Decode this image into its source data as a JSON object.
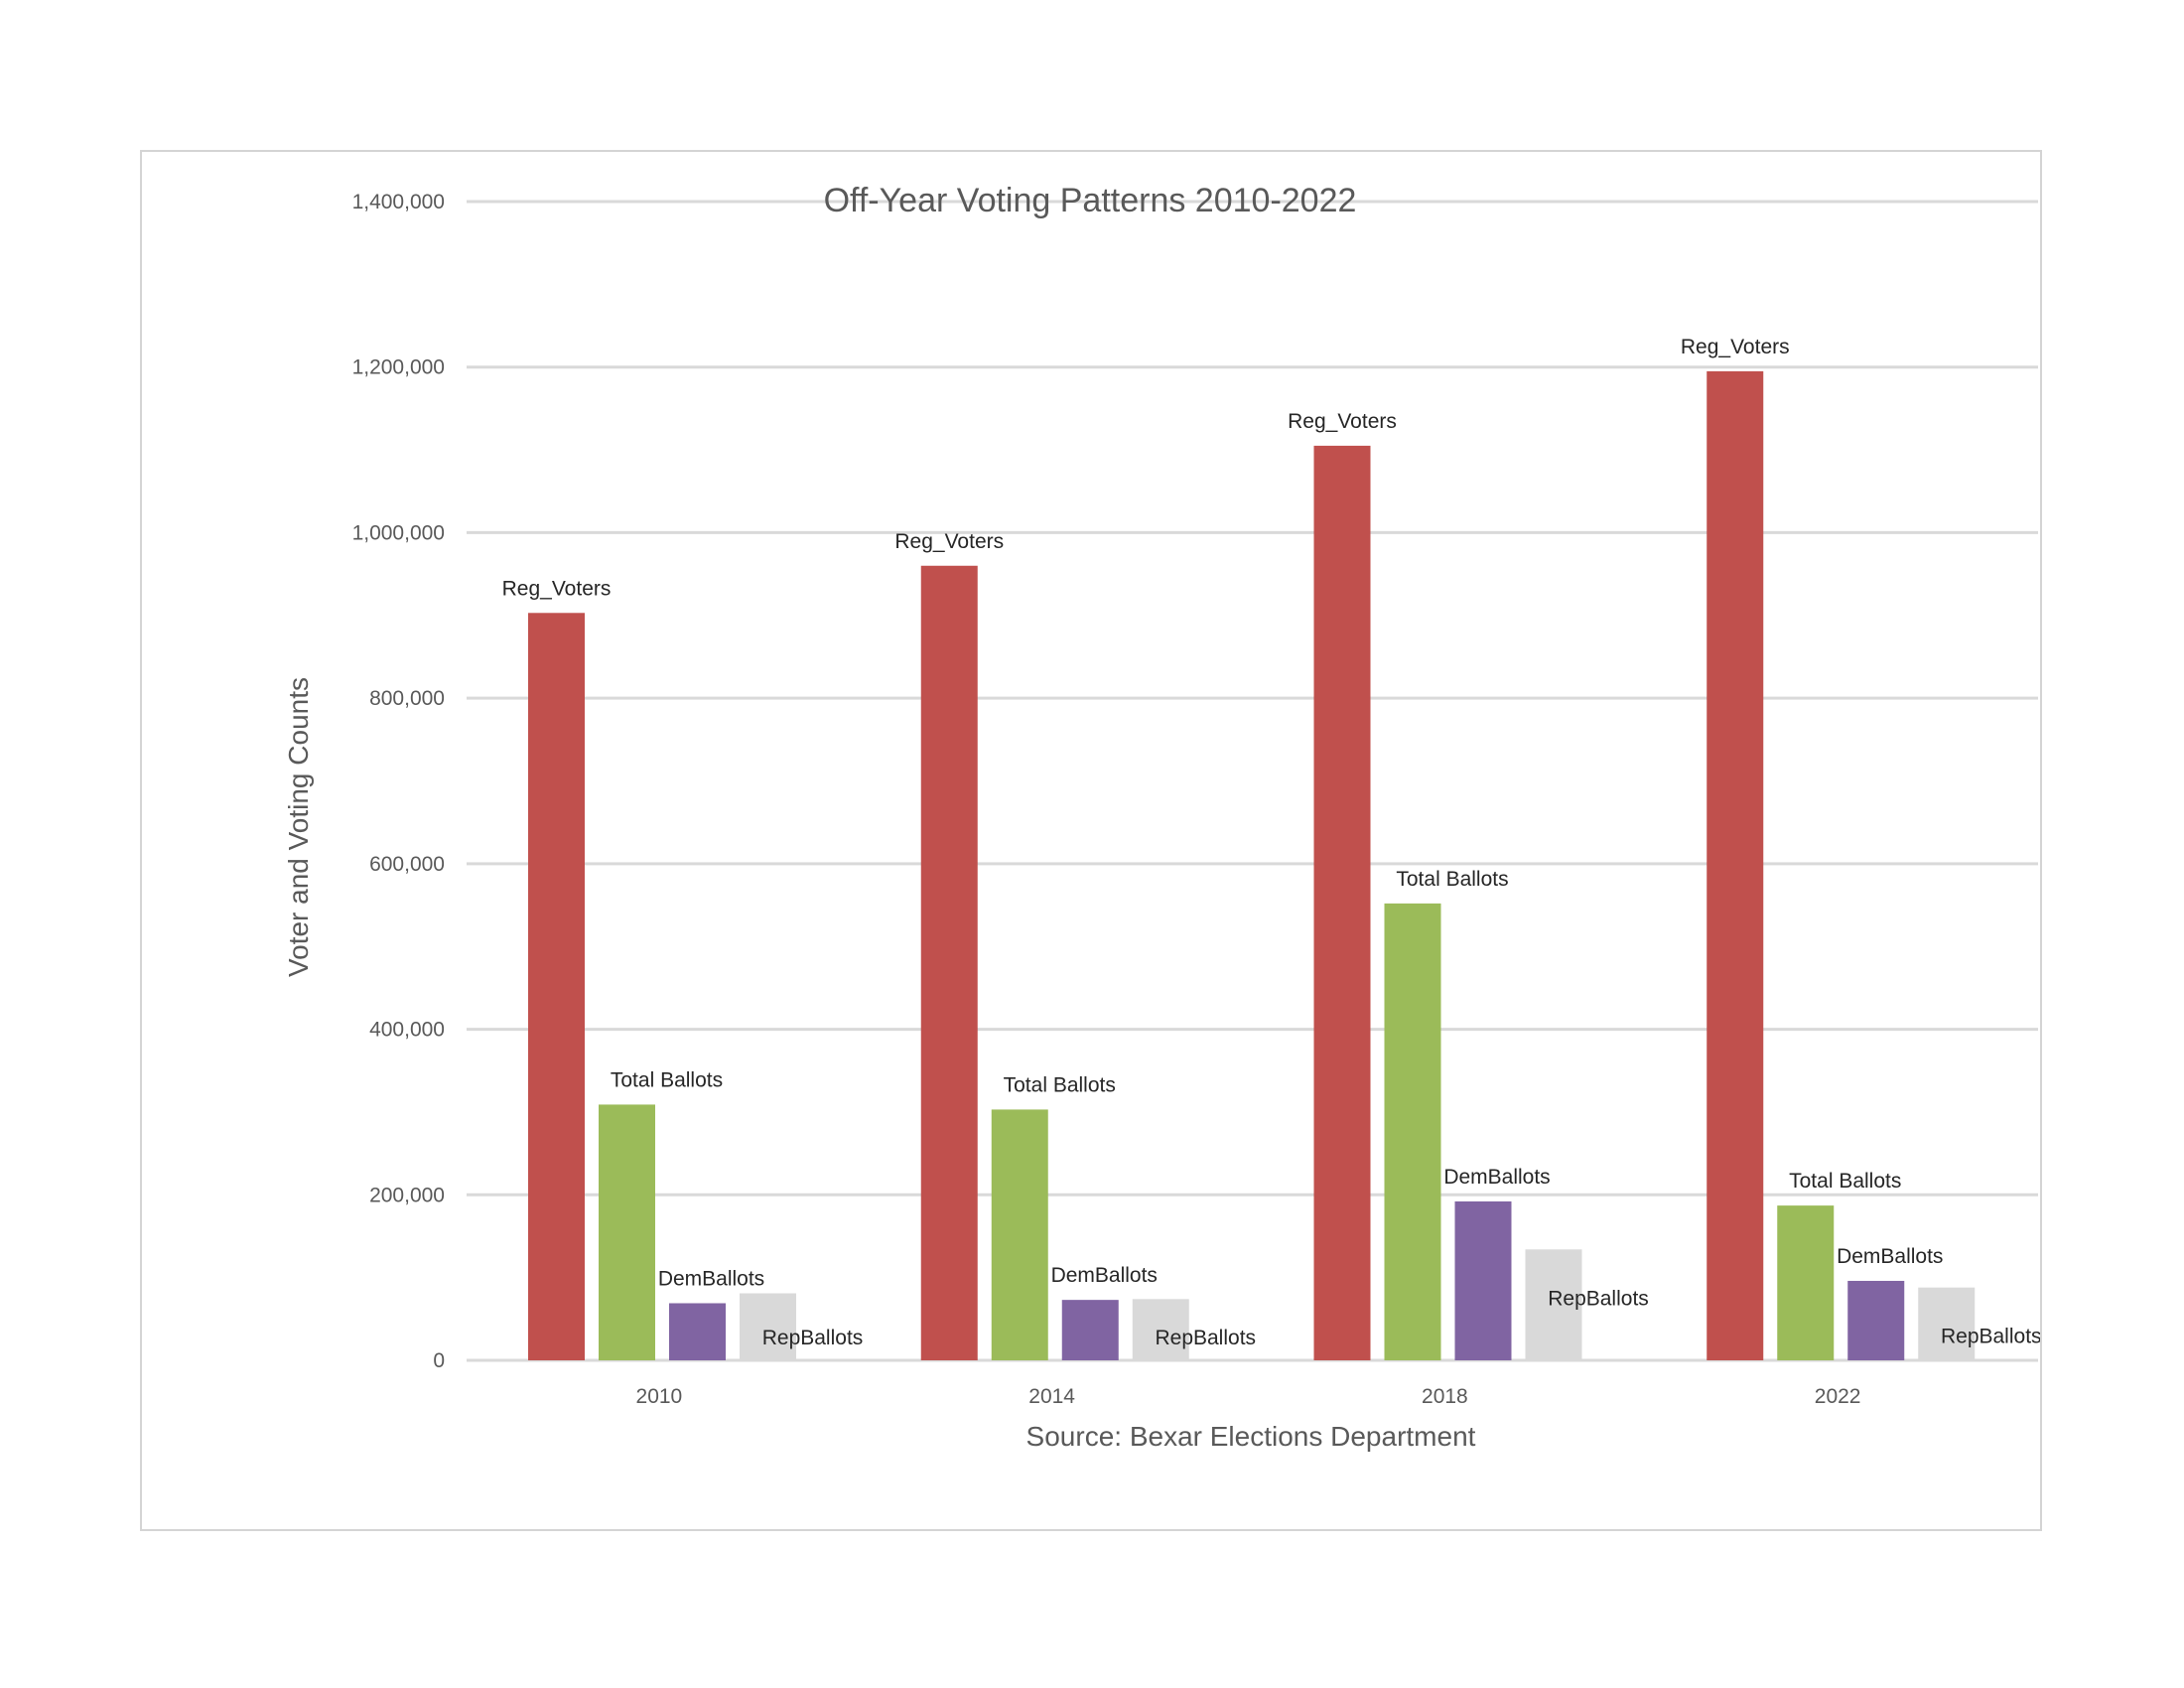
{
  "chart_data": {
    "type": "bar",
    "title": "Off-Year Voting Patterns 2010-2022",
    "xlabel": "Source: Bexar Elections Department",
    "ylabel": "Voter and Voting Counts",
    "categories": [
      "2010",
      "2014",
      "2018",
      "2022"
    ],
    "ylim": [
      0,
      1400000
    ],
    "yticks": [
      0,
      200000,
      400000,
      600000,
      800000,
      1000000,
      1200000,
      1400000
    ],
    "ytick_labels": [
      "0",
      "200,000",
      "400,000",
      "600,000",
      "800,000",
      "1,000,000",
      "1,200,000",
      "1,400,000"
    ],
    "grid": true,
    "series": [
      {
        "name": "Reg_Voters",
        "color": "#c0504d",
        "values": [
          903000,
          960000,
          1105000,
          1195000
        ]
      },
      {
        "name": "Total Ballots",
        "color": "#9bbb59",
        "values": [
          309000,
          303000,
          552000,
          187000
        ]
      },
      {
        "name": "DemBallots",
        "color": "#8064a2",
        "values": [
          69000,
          73000,
          192000,
          96000
        ]
      },
      {
        "name": "RepBallots",
        "color": "#d9d9d9",
        "values": [
          81000,
          74000,
          134000,
          88000
        ]
      }
    ],
    "data_labels": [
      [
        "Reg_Voters",
        "Total Ballots",
        "DemBallots",
        "RepBallots"
      ],
      [
        "Reg_Voters",
        "Total Ballots",
        "DemBallots",
        "RepBallots"
      ],
      [
        "Reg_Voters",
        "Total Ballots",
        "DemBallots",
        "RepBallots"
      ],
      [
        "Reg_Voters",
        "Total Ballots",
        "DemBallots",
        "RepBallots"
      ]
    ]
  }
}
